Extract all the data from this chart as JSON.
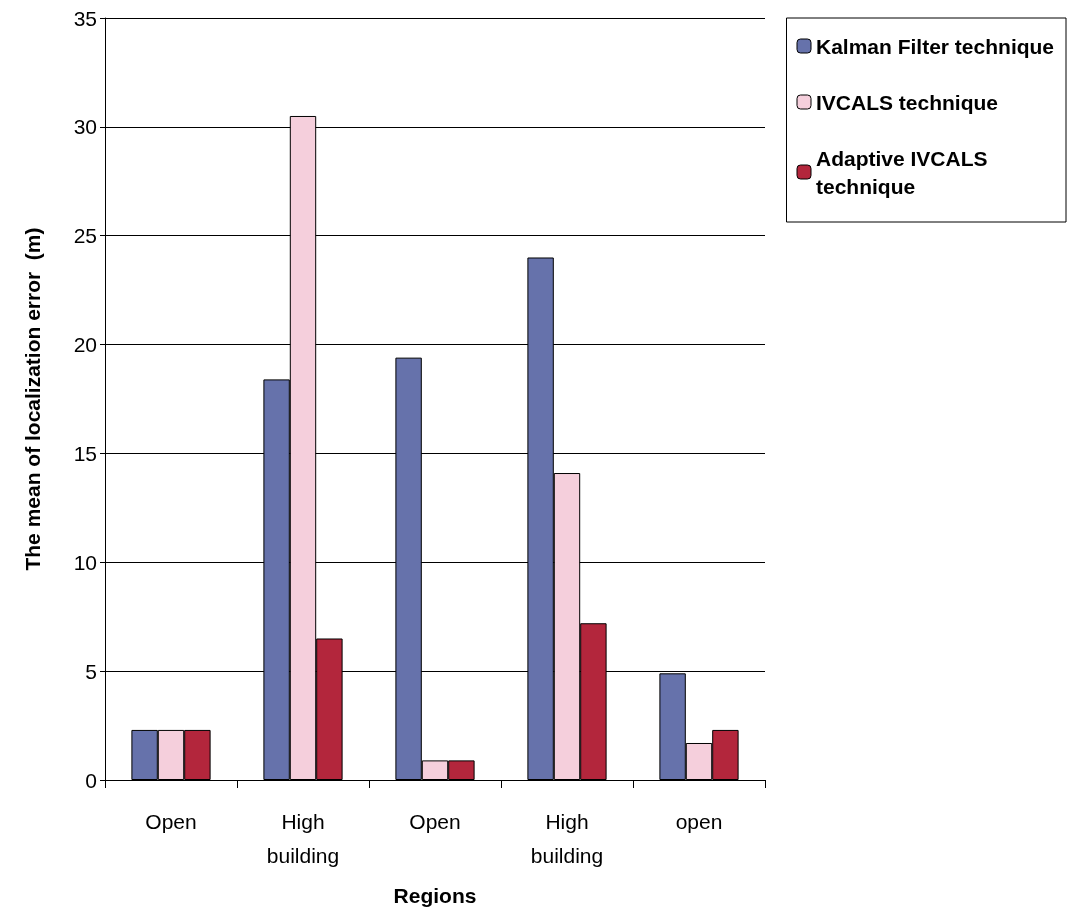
{
  "chart_data": {
    "type": "bar",
    "xlabel": "Regions",
    "ylabel": "The mean of localization error  (m)",
    "categories": [
      "Open",
      "High\nbuilding",
      "Open",
      "High\nbuilding",
      "open"
    ],
    "series": [
      {
        "name": "Kalman Filter technique",
        "color": "#6672ab",
        "values": [
          2.3,
          18.4,
          19.4,
          24.0,
          4.9
        ]
      },
      {
        "name": "IVCALS technique",
        "color": "#f5cfdc",
        "values": [
          2.3,
          30.5,
          0.9,
          14.1,
          1.7
        ]
      },
      {
        "name": "Adaptive IVCALS technique",
        "color": "#b3263c",
        "values": [
          2.3,
          6.5,
          0.9,
          7.2,
          2.3
        ]
      }
    ],
    "ylim": [
      0,
      35
    ],
    "yticks": [
      0,
      5,
      10,
      15,
      20,
      25,
      30,
      35
    ],
    "grid": "y",
    "legend": "top right"
  }
}
